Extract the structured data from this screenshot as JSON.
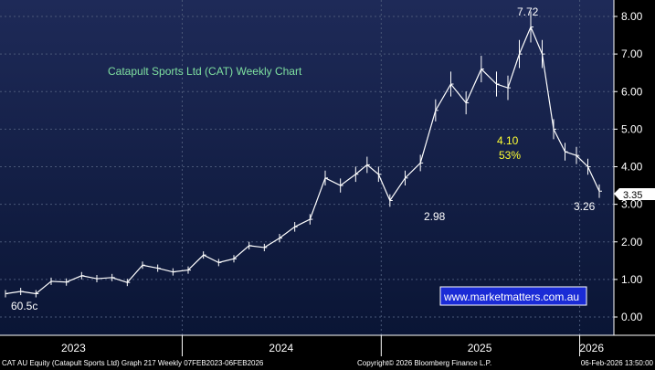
{
  "chart_data": {
    "type": "line",
    "title": "Catapult Sports Ltd (CAT) Weekly Chart",
    "xlabel": "",
    "ylabel": "",
    "ylim": [
      -0.1,
      8.3
    ],
    "yticks": [
      "0.00",
      "1.00",
      "2.00",
      "3.00",
      "4.00",
      "5.00",
      "6.00",
      "7.00",
      "8.00"
    ],
    "xticks": [
      "2023",
      "2024",
      "2025",
      "2026"
    ],
    "grid": true,
    "last_price_label": "3.35",
    "annotations": {
      "low_start": "60.5c",
      "high": "7.72",
      "low_mid": "2.98",
      "low_end": "3.26",
      "drop_value": "4.10",
      "drop_pct": "53%"
    },
    "series": [
      {
        "x": [
          "2023-02-10",
          "2023-03-10",
          "2023-04-07",
          "2023-05-05",
          "2023-06-02",
          "2023-06-30",
          "2023-07-28",
          "2023-08-25",
          "2023-09-22",
          "2023-10-20",
          "2023-11-17",
          "2023-12-15",
          "2024-01-12",
          "2024-02-09",
          "2024-03-08",
          "2024-04-05",
          "2024-05-03",
          "2024-05-31",
          "2024-06-28",
          "2024-07-26",
          "2024-08-23",
          "2024-09-20",
          "2024-10-18",
          "2024-11-15",
          "2024-12-06",
          "2024-12-27",
          "2025-01-17",
          "2025-02-14",
          "2025-03-14",
          "2025-04-11",
          "2025-05-09",
          "2025-06-06",
          "2025-07-04",
          "2025-08-01",
          "2025-08-22",
          "2025-09-12",
          "2025-10-03",
          "2025-10-24",
          "2025-11-14",
          "2025-12-05",
          "2025-12-26",
          "2026-01-16",
          "2026-02-06"
        ],
        "values": [
          0.62,
          0.68,
          0.62,
          0.95,
          0.93,
          1.1,
          1.02,
          1.05,
          0.92,
          1.38,
          1.3,
          1.2,
          1.25,
          1.65,
          1.45,
          1.55,
          1.9,
          1.85,
          2.1,
          2.4,
          2.6,
          3.7,
          3.5,
          3.8,
          4.05,
          3.8,
          3.1,
          3.7,
          4.1,
          5.5,
          6.2,
          5.7,
          6.6,
          6.2,
          6.1,
          7.0,
          7.72,
          7.0,
          5.0,
          4.4,
          4.3,
          4.0,
          3.35
        ]
      }
    ]
  },
  "watermark": "www.marketmatters.com.au",
  "footer": {
    "left": "CAT AU Equity (Catapult Sports Ltd) Graph 217 Weekly 07FEB2023-06FEB2026",
    "center": "Copyright© 2026 Bloomberg Finance L.P.",
    "right": "06-Feb-2026 13:50:00"
  },
  "colors": {
    "background": "#0a1535",
    "line": "#ffffff",
    "title": "#7fe0a0",
    "highlight": "#ffff33",
    "grid": "#4a5878",
    "watermark_bg": "#1a2bd6"
  }
}
